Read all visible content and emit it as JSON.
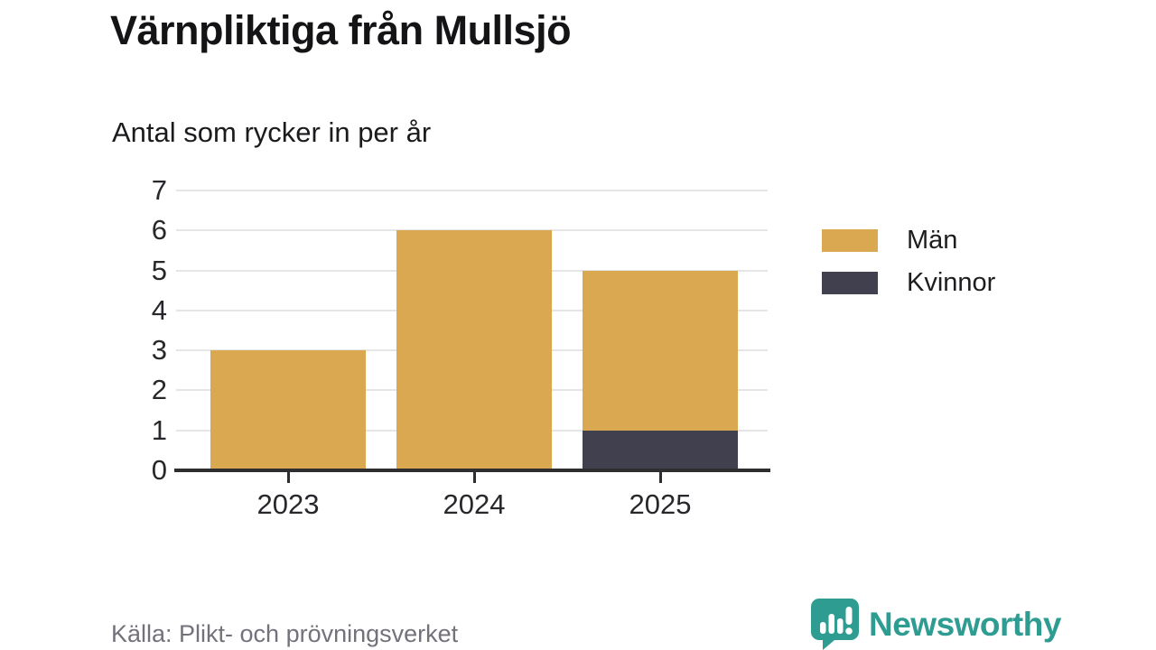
{
  "header": {
    "title": "Värnpliktiga från Mullsjö",
    "subtitle": "Antal som rycker in per år"
  },
  "footer": {
    "source": "Källa: Plikt- och prövningsverket",
    "brand_name": "Newsworthy"
  },
  "colors": {
    "men": "#d9a851",
    "women": "#41404e",
    "grid": "#e5e5e7",
    "axis": "#2e2e31",
    "text": "#28282c",
    "source_text": "#72727b",
    "brand_teal": "#2f9c92",
    "background": "#ffffff"
  },
  "icons": {
    "brand_icon": "bar-chart-speech-bubble-icon"
  },
  "chart_data": {
    "type": "bar",
    "stacked": true,
    "title": "Värnpliktiga från Mullsjö",
    "subtitle": "Antal som rycker in per år",
    "categories": [
      "2023",
      "2024",
      "2025"
    ],
    "series": [
      {
        "name": "Män",
        "color": "#d9a851",
        "values": [
          3,
          6,
          4
        ]
      },
      {
        "name": "Kvinnor",
        "color": "#41404e",
        "values": [
          0,
          0,
          1
        ]
      }
    ],
    "stack_note": "Kvinnor stacked at bottom, Män on top; totals 3, 6, 5",
    "xlabel": "",
    "ylabel": "",
    "ylim": [
      0,
      7
    ],
    "yticks": [
      0,
      1,
      2,
      3,
      4,
      5,
      6,
      7
    ],
    "grid": true,
    "legend_position": "right"
  },
  "legend": {
    "items": [
      {
        "label": "Män",
        "color": "#d9a851"
      },
      {
        "label": "Kvinnor",
        "color": "#41404e"
      }
    ]
  }
}
